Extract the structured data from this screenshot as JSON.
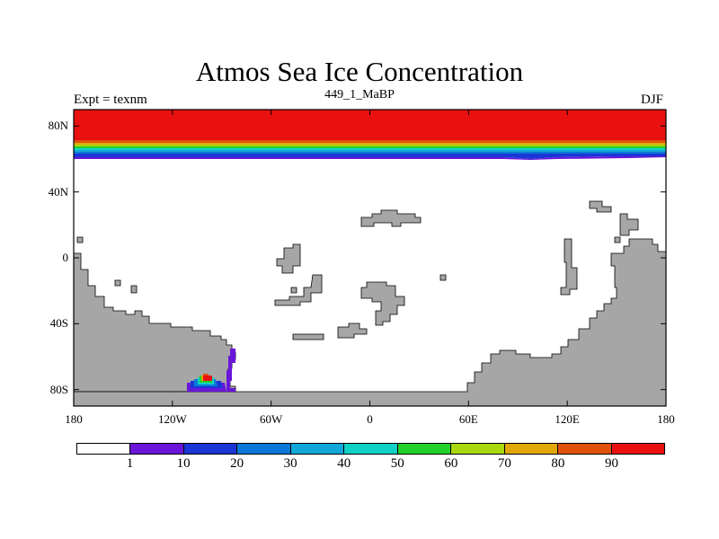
{
  "title": "Atmos Sea Ice Concentration",
  "subtitle": "449_1_MaBP",
  "left_label": "Expt = texnm",
  "right_label": "DJF",
  "map": {
    "lon_range": [
      -180,
      180
    ],
    "lat_range": [
      -90,
      90
    ],
    "y_ticks": [
      {
        "lat": 80,
        "label": "80N"
      },
      {
        "lat": 40,
        "label": "40N"
      },
      {
        "lat": 0,
        "label": "0"
      },
      {
        "lat": -40,
        "label": "40S"
      },
      {
        "lat": -80,
        "label": "80S"
      }
    ],
    "x_ticks": [
      {
        "lon": -180,
        "label": "180"
      },
      {
        "lon": -120,
        "label": "120W"
      },
      {
        "lon": -60,
        "label": "60W"
      },
      {
        "lon": 0,
        "label": "0"
      },
      {
        "lon": 60,
        "label": "60E"
      },
      {
        "lon": 120,
        "label": "120E"
      },
      {
        "lon": 180,
        "label": "180"
      }
    ],
    "land_color": "#a6a6a6",
    "ocean_color": "#ffffff"
  },
  "colorbar": {
    "colors": [
      "#ffffff",
      "#6a16d9",
      "#1a36d6",
      "#0a78d8",
      "#10a8d8",
      "#0fd1c6",
      "#22d22a",
      "#a8d80e",
      "#e0a808",
      "#e0520a",
      "#e81010"
    ],
    "labels": [
      "1",
      "10",
      "20",
      "30",
      "40",
      "50",
      "60",
      "70",
      "80",
      "90"
    ]
  }
}
